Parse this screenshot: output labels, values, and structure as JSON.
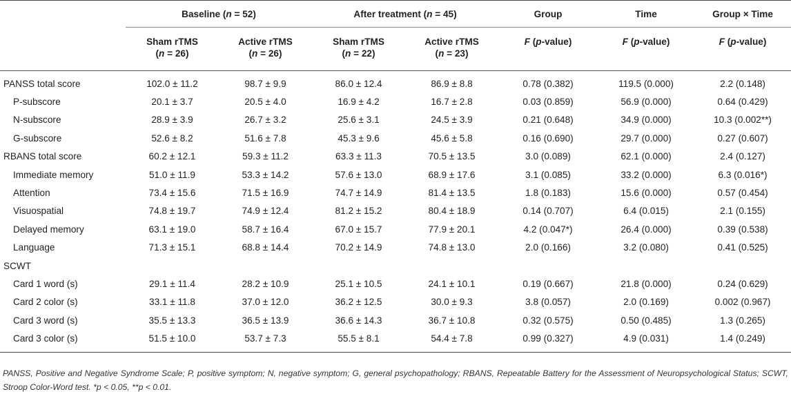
{
  "table": {
    "group_headers": [
      {
        "id": "baseline",
        "label": "Baseline (n = 52)"
      },
      {
        "id": "after",
        "label": "After treatment (n = 45)"
      },
      {
        "id": "group",
        "label": "Group"
      },
      {
        "id": "time",
        "label": "Time"
      },
      {
        "id": "gxt",
        "label": "Group × Time"
      }
    ],
    "sub_headers": [
      {
        "line1": "Sham rTMS",
        "line2": "(n = 26)"
      },
      {
        "line1": "Active rTMS",
        "line2": "(n = 26)"
      },
      {
        "line1": "Sham rTMS",
        "line2": "(n = 22)"
      },
      {
        "line1": "Active rTMS",
        "line2": "(n = 23)"
      },
      {
        "line1": "F (p-value)",
        "line2": ""
      },
      {
        "line1": "F (p-value)",
        "line2": ""
      },
      {
        "line1": "F (p-value)",
        "line2": ""
      }
    ],
    "rows": [
      {
        "label": "PANSS total score",
        "indent": false,
        "cells": [
          "102.0 ± 11.2",
          "98.7 ± 9.9",
          "86.0 ± 12.4",
          "86.9 ± 8.8",
          "0.78 (0.382)",
          "119.5 (0.000)",
          "2.2 (0.148)"
        ]
      },
      {
        "label": "P-subscore",
        "indent": true,
        "cells": [
          "20.1 ± 3.7",
          "20.5 ± 4.0",
          "16.9 ± 4.2",
          "16.7 ± 2.8",
          "0.03 (0.859)",
          "56.9 (0.000)",
          "0.64 (0.429)"
        ]
      },
      {
        "label": "N-subscore",
        "indent": true,
        "cells": [
          "28.9 ± 3.9",
          "26.7 ± 3.2",
          "25.6 ± 3.1",
          "24.5 ± 3.9",
          "0.21 (0.648)",
          "34.9 (0.000)",
          "10.3 (0.002**)"
        ]
      },
      {
        "label": "G-subscore",
        "indent": true,
        "cells": [
          "52.6 ± 8.2",
          "51.6 ± 7.8",
          "45.3 ± 9.6",
          "45.6 ± 5.8",
          "0.16 (0.690)",
          "29.7 (0.000)",
          "0.27 (0.607)"
        ]
      },
      {
        "label": "RBANS total score",
        "indent": false,
        "cells": [
          "60.2 ± 12.1",
          "59.3 ± 11.2",
          "63.3 ± 11.3",
          "70.5 ± 13.5",
          "3.0 (0.089)",
          "62.1 (0.000)",
          "2.4 (0.127)"
        ]
      },
      {
        "label": "Immediate memory",
        "indent": true,
        "cells": [
          "51.0 ± 11.9",
          "53.3 ± 14.2",
          "57.6 ± 13.0",
          "68.9 ± 17.6",
          "3.1 (0.085)",
          "33.2 (0.000)",
          "6.3 (0.016*)"
        ]
      },
      {
        "label": "Attention",
        "indent": true,
        "cells": [
          "73.4 ± 15.6",
          "71.5 ± 16.9",
          "74.7 ± 14.9",
          "81.4 ± 13.5",
          "1.8 (0.183)",
          "15.6 (0.000)",
          "0.57 (0.454)"
        ]
      },
      {
        "label": "Visuospatial",
        "indent": true,
        "cells": [
          "74.8 ± 19.7",
          "74.9 ± 12.4",
          "81.2 ± 15.2",
          "80.4 ± 18.9",
          "0.14 (0.707)",
          "6.4 (0.015)",
          "2.1 (0.155)"
        ]
      },
      {
        "label": "Delayed memory",
        "indent": true,
        "cells": [
          "63.1 ± 19.0",
          "58.7 ± 16.4",
          "67.0 ± 15.7",
          "77.9 ± 20.1",
          "4.2 (0.047*)",
          "26.4 (0.000)",
          "0.39 (0.538)"
        ]
      },
      {
        "label": "Language",
        "indent": true,
        "cells": [
          "71.3 ± 15.1",
          "68.8 ± 14.4",
          "70.2 ± 14.9",
          "74.8 ± 13.0",
          "2.0 (0.166)",
          "3.2 (0.080)",
          "0.41 (0.525)"
        ]
      },
      {
        "label": "SCWT",
        "indent": false,
        "cells": [
          "",
          "",
          "",
          "",
          "",
          "",
          ""
        ]
      },
      {
        "label": "Card 1 word (s)",
        "indent": true,
        "cells": [
          "29.1 ± 11.4",
          "28.2 ± 10.9",
          "25.1 ± 10.5",
          "24.1 ± 10.1",
          "0.19 (0.667)",
          "21.8 (0.000)",
          "0.24 (0.629)"
        ]
      },
      {
        "label": "Card 2 color (s)",
        "indent": true,
        "cells": [
          "33.1 ± 11.8",
          "37.0 ± 12.0",
          "36.2 ± 12.5",
          "30.0 ± 9.3",
          "3.8 (0.057)",
          "2.0 (0.169)",
          "0.002 (0.967)"
        ]
      },
      {
        "label": "Card 3 word (s)",
        "indent": true,
        "cells": [
          "35.5 ± 13.3",
          "36.5 ± 13.9",
          "36.6 ± 14.3",
          "36.7 ± 10.8",
          "0.32 (0.575)",
          "0.50 (0.485)",
          "1.3 (0.265)"
        ]
      },
      {
        "label": "Card 3 color (s)",
        "indent": true,
        "cells": [
          "51.5 ± 10.0",
          "53.7 ± 7.3",
          "55.5 ± 8.1",
          "54.4 ± 7.8",
          "0.99 (0.327)",
          "4.9 (0.031)",
          "1.4 (0.249)"
        ]
      }
    ]
  },
  "footnote": "PANSS, Positive and Negative Syndrome Scale; P, positive symptom; N, negative symptom; G, general psychopathology; RBANS, Repeatable Battery for the Assessment of Neuropsychological Status; SCWT, Stroop Color-Word test. *p < 0.05, **p < 0.01."
}
